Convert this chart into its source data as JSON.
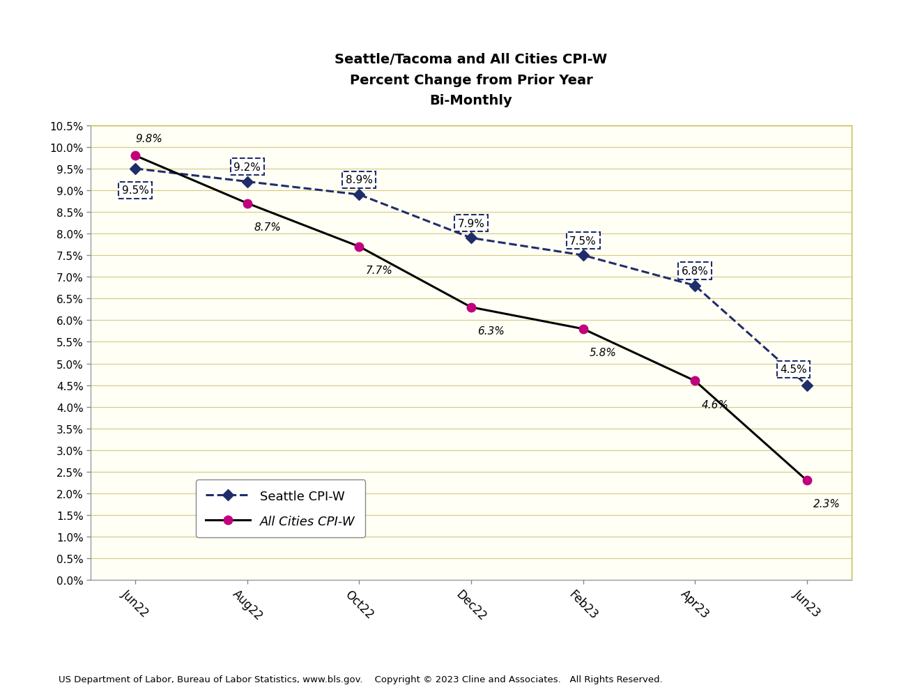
{
  "title": "Seattle/Tacoma and All Cities CPI-W\nPercent Change from Prior Year\nBi-Monthly",
  "x_labels": [
    "Jun22",
    "Aug22",
    "Oct22",
    "Dec22",
    "Feb23",
    "Apr23",
    "Jun23"
  ],
  "seattle_values": [
    9.5,
    9.2,
    8.9,
    7.9,
    7.5,
    6.8,
    4.5
  ],
  "allcities_values": [
    9.8,
    8.7,
    7.7,
    6.3,
    5.8,
    4.6,
    2.3
  ],
  "seattle_labels": [
    "9.5%",
    "9.2%",
    "8.9%",
    "7.9%",
    "7.5%",
    "6.8%",
    "4.5%"
  ],
  "allcities_labels": [
    "9.8%",
    "8.7%",
    "7.7%",
    "6.3%",
    "5.8%",
    "4.6%",
    "2.3%"
  ],
  "seattle_label_offsets_x": [
    0.0,
    0.0,
    0.0,
    0.0,
    0.0,
    0.0,
    -0.12
  ],
  "seattle_label_offsets_y": [
    -0.38,
    0.22,
    0.22,
    0.22,
    0.22,
    0.22,
    0.25
  ],
  "allcities_label_offsets_x": [
    0.12,
    0.18,
    0.18,
    0.18,
    0.18,
    0.18,
    0.18
  ],
  "allcities_label_offsets_y": [
    0.28,
    -0.42,
    -0.42,
    -0.42,
    -0.42,
    -0.42,
    -0.42
  ],
  "seattle_color": "#1F2D6B",
  "allcities_color": "#C0007E",
  "background_color": "#FFFFFF",
  "plot_bg_color": "#FFFFF5",
  "grid_color": "#D4C980",
  "right_spine_color": "#C8B840",
  "top_spine_color": "#C8B840",
  "ylim_min": 0.0,
  "ylim_max": 10.5,
  "ytick_step": 0.5,
  "footer_text": "US Department of Labor, Bureau of Labor Statistics, www.bls.gov.    Copyright © 2023 Cline and Associates.   All Rights Reserved.",
  "legend_seattle": "Seattle CPI-W",
  "legend_allcities": "All Cities CPI-W"
}
